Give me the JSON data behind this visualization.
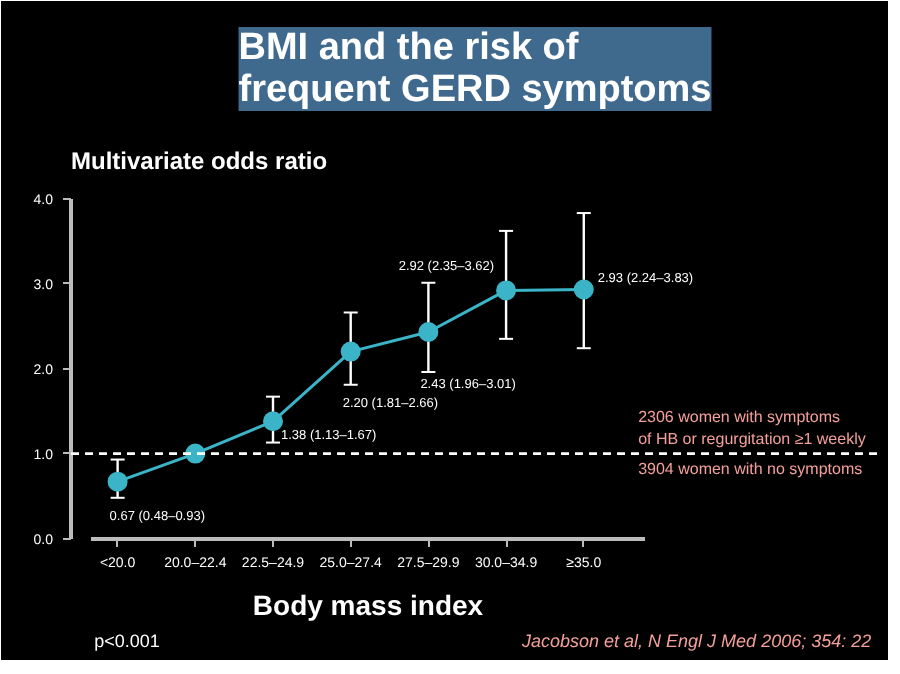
{
  "chart_data": {
    "type": "line",
    "title": "BMI and the risk of\nfrequent GERD symptoms",
    "ylabel": "Multivariate odds ratio",
    "xlabel": "Body mass index",
    "categories": [
      "<20.0",
      "20.0–22.4",
      "22.5–24.9",
      "25.0–27.4",
      "27.5–29.9",
      "30.0–34.9",
      "≥35.0"
    ],
    "series": [
      {
        "color": "#3cb4c8",
        "values": [
          0.67,
          1.0,
          1.38,
          2.2,
          2.43,
          2.92,
          2.93
        ],
        "errors": [
          [
            0.48,
            0.93
          ],
          null,
          [
            1.13,
            1.67
          ],
          [
            1.81,
            2.66
          ],
          [
            1.96,
            3.01
          ],
          [
            2.35,
            3.62
          ],
          [
            2.24,
            3.83
          ]
        ],
        "value_labels": [
          "0.67 (0.48–0.93)",
          null,
          "1.38 (1.13–1.67)",
          "2.20 (1.81–2.66)",
          "2.43 (1.96–3.01)",
          "2.92 (2.35–3.62)",
          "2.93 (2.24–3.83)"
        ]
      }
    ],
    "ylim": [
      0,
      4
    ],
    "yticks": [
      {
        "value": 0,
        "label": "0.0"
      },
      {
        "value": 1,
        "label": "1.0"
      },
      {
        "value": 2,
        "label": "2.0"
      },
      {
        "value": 3,
        "label": "3.0"
      },
      {
        "value": 4,
        "label": "4.0"
      }
    ],
    "ref_lines": [
      {
        "axis": "y",
        "value": 1,
        "line_style": "dashed",
        "color": "#ffffff"
      }
    ],
    "annotations": [
      "2306 women with symptoms\nof HB or regurgitation ≥1 weekly",
      "3904 women with no symptoms",
      "p<0.001",
      "Jacobson et al, N Engl J Med 2006; 354: 22"
    ],
    "marker": "circle",
    "line_style": "solid",
    "grid": false
  }
}
